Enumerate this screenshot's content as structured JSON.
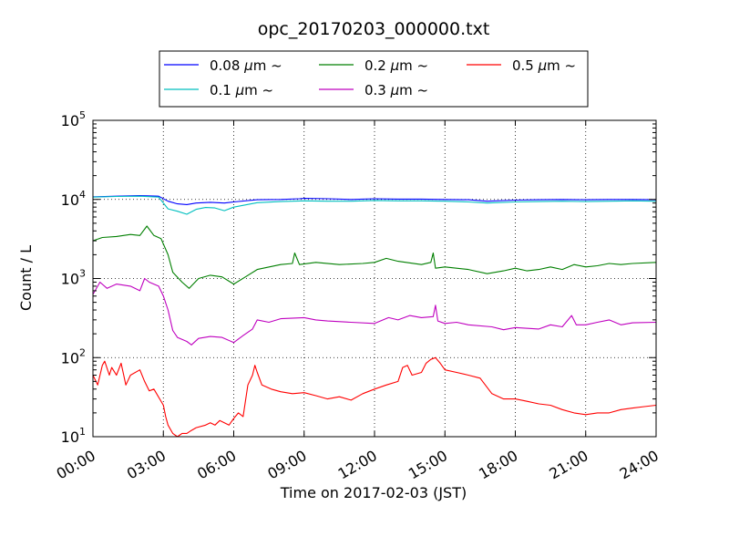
{
  "chart_data": {
    "type": "line",
    "title": "opc_20170203_000000.txt",
    "xlabel": "Time on 2017-02-03 (JST)",
    "ylabel": "Count / L",
    "yscale": "log",
    "ylim": [
      10,
      100000
    ],
    "xlim": [
      "2017-02-03 00:00",
      "2017-02-04 00:00"
    ],
    "grid": true,
    "legend_position": "top-center",
    "x_ticks": [
      "00:00",
      "03:00",
      "06:00",
      "09:00",
      "12:00",
      "15:00",
      "18:00",
      "21:00",
      "24:00"
    ],
    "y_ticks": [
      {
        "value": 10,
        "mantissa": "10",
        "exp": "1"
      },
      {
        "value": 100,
        "mantissa": "10",
        "exp": "2"
      },
      {
        "value": 1000,
        "mantissa": "10",
        "exp": "3"
      },
      {
        "value": 10000,
        "mantissa": "10",
        "exp": "4"
      },
      {
        "value": 100000,
        "mantissa": "10",
        "exp": "5"
      }
    ],
    "series": [
      {
        "name": "0.08 μm ~",
        "legend_label": "0.08 ",
        "color": "#0000ff",
        "points": [
          [
            "00:00",
            10800
          ],
          [
            "01:00",
            11000
          ],
          [
            "02:00",
            11200
          ],
          [
            "02:48",
            11000
          ],
          [
            "03:12",
            9500
          ],
          [
            "03:36",
            8800
          ],
          [
            "04:00",
            8600
          ],
          [
            "04:24",
            9000
          ],
          [
            "05:00",
            9200
          ],
          [
            "05:36",
            9000
          ],
          [
            "06:00",
            9300
          ],
          [
            "07:00",
            9900
          ],
          [
            "08:00",
            10000
          ],
          [
            "08:48",
            10200
          ],
          [
            "09:00",
            10300
          ],
          [
            "10:00",
            10200
          ],
          [
            "11:00",
            10000
          ],
          [
            "12:00",
            10200
          ],
          [
            "13:00",
            10100
          ],
          [
            "14:00",
            10100
          ],
          [
            "15:00",
            10000
          ],
          [
            "16:00",
            9900
          ],
          [
            "16:48",
            9500
          ],
          [
            "18:00",
            9800
          ],
          [
            "19:00",
            9900
          ],
          [
            "20:00",
            10000
          ],
          [
            "21:00",
            9900
          ],
          [
            "22:00",
            10000
          ],
          [
            "23:00",
            10000
          ],
          [
            "24:00",
            9900
          ]
        ]
      },
      {
        "name": "0.1 μm ~",
        "legend_label": "0.1 ",
        "color": "#00bfbf",
        "points": [
          [
            "00:00",
            10700
          ],
          [
            "01:00",
            10900
          ],
          [
            "02:00",
            11000
          ],
          [
            "02:48",
            10700
          ],
          [
            "03:12",
            7600
          ],
          [
            "03:36",
            7100
          ],
          [
            "04:00",
            6500
          ],
          [
            "04:24",
            7500
          ],
          [
            "04:48",
            7900
          ],
          [
            "05:12",
            7800
          ],
          [
            "05:36",
            7200
          ],
          [
            "06:00",
            8000
          ],
          [
            "07:00",
            9100
          ],
          [
            "08:00",
            9400
          ],
          [
            "09:00",
            9600
          ],
          [
            "10:00",
            9500
          ],
          [
            "11:00",
            9500
          ],
          [
            "12:00",
            9700
          ],
          [
            "13:00",
            9600
          ],
          [
            "14:00",
            9600
          ],
          [
            "15:00",
            9500
          ],
          [
            "16:00",
            9300
          ],
          [
            "16:48",
            9000
          ],
          [
            "18:00",
            9300
          ],
          [
            "19:00",
            9400
          ],
          [
            "20:00",
            9500
          ],
          [
            "21:00",
            9400
          ],
          [
            "22:00",
            9500
          ],
          [
            "23:00",
            9600
          ],
          [
            "24:00",
            9500
          ]
        ]
      },
      {
        "name": "0.2 μm ~",
        "legend_label": "0.2 ",
        "color": "#007f00",
        "points": [
          [
            "00:00",
            3000
          ],
          [
            "00:24",
            3300
          ],
          [
            "01:00",
            3400
          ],
          [
            "01:36",
            3600
          ],
          [
            "02:00",
            3500
          ],
          [
            "02:18",
            4600
          ],
          [
            "02:36",
            3500
          ],
          [
            "02:54",
            3200
          ],
          [
            "03:12",
            2000
          ],
          [
            "03:24",
            1200
          ],
          [
            "03:48",
            900
          ],
          [
            "04:06",
            750
          ],
          [
            "04:30",
            1000
          ],
          [
            "05:00",
            1100
          ],
          [
            "05:30",
            1050
          ],
          [
            "06:00",
            850
          ],
          [
            "06:30",
            1050
          ],
          [
            "07:00",
            1300
          ],
          [
            "08:00",
            1500
          ],
          [
            "08:30",
            1550
          ],
          [
            "08:36",
            2100
          ],
          [
            "08:48",
            1500
          ],
          [
            "09:30",
            1600
          ],
          [
            "10:30",
            1500
          ],
          [
            "11:30",
            1550
          ],
          [
            "12:00",
            1600
          ],
          [
            "12:30",
            1800
          ],
          [
            "13:00",
            1650
          ],
          [
            "14:00",
            1500
          ],
          [
            "14:24",
            1600
          ],
          [
            "14:30",
            2100
          ],
          [
            "14:36",
            1350
          ],
          [
            "15:00",
            1400
          ],
          [
            "16:00",
            1300
          ],
          [
            "16:48",
            1150
          ],
          [
            "17:30",
            1250
          ],
          [
            "18:00",
            1350
          ],
          [
            "18:30",
            1250
          ],
          [
            "19:00",
            1300
          ],
          [
            "19:30",
            1400
          ],
          [
            "20:00",
            1300
          ],
          [
            "20:30",
            1500
          ],
          [
            "21:00",
            1400
          ],
          [
            "21:30",
            1450
          ],
          [
            "22:00",
            1550
          ],
          [
            "22:30",
            1500
          ],
          [
            "23:00",
            1550
          ],
          [
            "24:00",
            1600
          ]
        ]
      },
      {
        "name": "0.3 μm ~",
        "legend_label": "0.3 ",
        "color": "#bf00bf",
        "points": [
          [
            "00:00",
            630
          ],
          [
            "00:18",
            900
          ],
          [
            "00:36",
            750
          ],
          [
            "01:00",
            850
          ],
          [
            "01:36",
            800
          ],
          [
            "02:00",
            700
          ],
          [
            "02:12",
            1000
          ],
          [
            "02:24",
            900
          ],
          [
            "02:48",
            800
          ],
          [
            "03:00",
            600
          ],
          [
            "03:12",
            400
          ],
          [
            "03:24",
            220
          ],
          [
            "03:36",
            180
          ],
          [
            "04:00",
            160
          ],
          [
            "04:12",
            145
          ],
          [
            "04:30",
            175
          ],
          [
            "05:00",
            185
          ],
          [
            "05:30",
            180
          ],
          [
            "06:00",
            155
          ],
          [
            "06:24",
            190
          ],
          [
            "06:48",
            230
          ],
          [
            "07:00",
            300
          ],
          [
            "07:30",
            280
          ],
          [
            "08:00",
            310
          ],
          [
            "09:00",
            320
          ],
          [
            "09:30",
            300
          ],
          [
            "10:00",
            290
          ],
          [
            "11:00",
            280
          ],
          [
            "12:00",
            270
          ],
          [
            "12:36",
            320
          ],
          [
            "13:00",
            300
          ],
          [
            "13:30",
            340
          ],
          [
            "14:00",
            320
          ],
          [
            "14:30",
            330
          ],
          [
            "14:36",
            460
          ],
          [
            "14:42",
            290
          ],
          [
            "15:00",
            270
          ],
          [
            "15:30",
            280
          ],
          [
            "16:00",
            260
          ],
          [
            "17:00",
            245
          ],
          [
            "17:30",
            225
          ],
          [
            "18:00",
            240
          ],
          [
            "19:00",
            230
          ],
          [
            "19:30",
            260
          ],
          [
            "20:00",
            245
          ],
          [
            "20:24",
            340
          ],
          [
            "20:36",
            260
          ],
          [
            "21:00",
            260
          ],
          [
            "21:30",
            280
          ],
          [
            "22:00",
            300
          ],
          [
            "22:30",
            260
          ],
          [
            "23:00",
            275
          ],
          [
            "24:00",
            280
          ]
        ]
      },
      {
        "name": "0.5 μm ~",
        "legend_label": "0.5 ",
        "color": "#ff0000",
        "points": [
          [
            "00:00",
            60
          ],
          [
            "00:12",
            45
          ],
          [
            "00:24",
            80
          ],
          [
            "00:30",
            90
          ],
          [
            "00:42",
            60
          ],
          [
            "00:48",
            75
          ],
          [
            "01:00",
            60
          ],
          [
            "01:12",
            85
          ],
          [
            "01:24",
            45
          ],
          [
            "01:36",
            60
          ],
          [
            "02:00",
            70
          ],
          [
            "02:12",
            50
          ],
          [
            "02:24",
            38
          ],
          [
            "02:36",
            40
          ],
          [
            "03:00",
            25
          ],
          [
            "03:06",
            18
          ],
          [
            "03:12",
            14
          ],
          [
            "03:24",
            11
          ],
          [
            "03:36",
            10
          ],
          [
            "03:48",
            11
          ],
          [
            "04:00",
            11
          ],
          [
            "04:12",
            12
          ],
          [
            "04:24",
            13
          ],
          [
            "04:48",
            14
          ],
          [
            "05:00",
            15
          ],
          [
            "05:12",
            14
          ],
          [
            "05:24",
            16
          ],
          [
            "05:36",
            15
          ],
          [
            "05:48",
            14
          ],
          [
            "06:00",
            17
          ],
          [
            "06:12",
            20
          ],
          [
            "06:24",
            18
          ],
          [
            "06:36",
            45
          ],
          [
            "06:48",
            60
          ],
          [
            "06:54",
            80
          ],
          [
            "07:00",
            65
          ],
          [
            "07:12",
            45
          ],
          [
            "07:36",
            40
          ],
          [
            "08:00",
            37
          ],
          [
            "08:30",
            35
          ],
          [
            "09:00",
            36
          ],
          [
            "09:30",
            33
          ],
          [
            "10:00",
            30
          ],
          [
            "10:30",
            32
          ],
          [
            "11:00",
            29
          ],
          [
            "11:30",
            35
          ],
          [
            "12:00",
            40
          ],
          [
            "12:30",
            45
          ],
          [
            "13:00",
            50
          ],
          [
            "13:12",
            75
          ],
          [
            "13:24",
            80
          ],
          [
            "13:36",
            60
          ],
          [
            "14:00",
            65
          ],
          [
            "14:12",
            85
          ],
          [
            "14:24",
            95
          ],
          [
            "14:36",
            100
          ],
          [
            "14:48",
            85
          ],
          [
            "15:00",
            70
          ],
          [
            "15:30",
            65
          ],
          [
            "16:00",
            60
          ],
          [
            "16:30",
            55
          ],
          [
            "17:00",
            35
          ],
          [
            "17:30",
            30
          ],
          [
            "18:00",
            30
          ],
          [
            "18:30",
            28
          ],
          [
            "19:00",
            26
          ],
          [
            "19:30",
            25
          ],
          [
            "20:00",
            22
          ],
          [
            "20:30",
            20
          ],
          [
            "21:00",
            19
          ],
          [
            "21:30",
            20
          ],
          [
            "22:00",
            20
          ],
          [
            "22:30",
            22
          ],
          [
            "23:00",
            23
          ],
          [
            "23:30",
            24
          ],
          [
            "24:00",
            25
          ]
        ]
      }
    ]
  }
}
